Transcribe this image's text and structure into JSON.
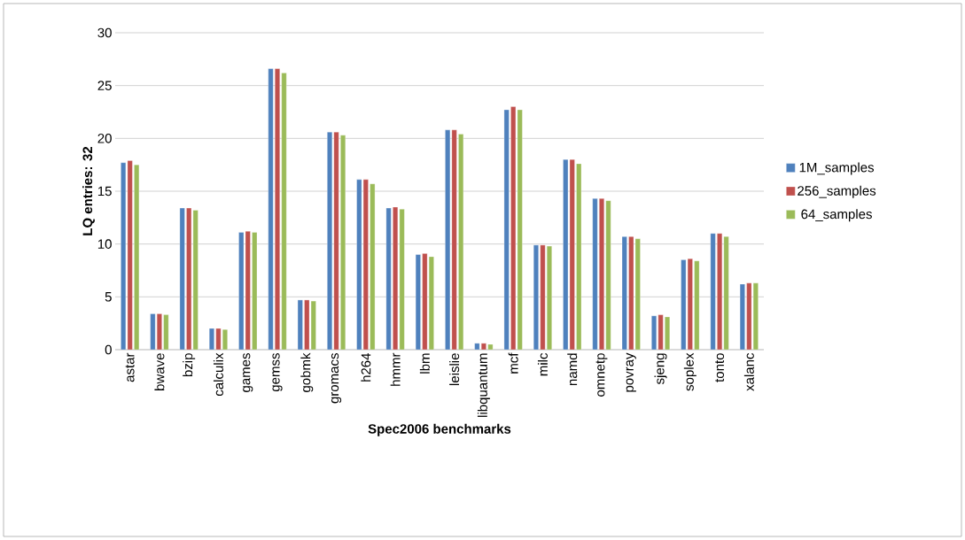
{
  "chart_data": {
    "type": "bar",
    "xlabel": "Spec2006 benchmarks",
    "ylabel": "LQ entries: 32",
    "categories": [
      "astar",
      "bwave",
      "bzip",
      "calculix",
      "games",
      "gemss",
      "gobmk",
      "gromacs",
      "h264",
      "hmmr",
      "lbm",
      "leislie",
      "libquantum",
      "mcf",
      "milc",
      "namd",
      "omnetp",
      "povray",
      "sjeng",
      "soplex",
      "tonto",
      "xalanc"
    ],
    "series": [
      {
        "name": "1M_samples",
        "color": "#4f81bd",
        "values": [
          17.7,
          3.4,
          13.4,
          2.0,
          11.1,
          26.6,
          4.7,
          20.6,
          16.1,
          13.4,
          9.0,
          20.8,
          0.6,
          22.7,
          9.9,
          18.0,
          14.3,
          10.7,
          3.2,
          8.5,
          11.0,
          6.2
        ]
      },
      {
        "name": "256_samples",
        "color": "#c0504d",
        "values": [
          17.9,
          3.4,
          13.4,
          2.0,
          11.2,
          26.6,
          4.7,
          20.6,
          16.1,
          13.5,
          9.1,
          20.8,
          0.6,
          23.0,
          9.9,
          18.0,
          14.3,
          10.7,
          3.3,
          8.6,
          11.0,
          6.3
        ]
      },
      {
        "name": "64_samples",
        "color": "#9bbb59",
        "values": [
          17.5,
          3.3,
          13.2,
          1.9,
          11.1,
          26.2,
          4.6,
          20.3,
          15.7,
          13.3,
          8.8,
          20.4,
          0.5,
          22.7,
          9.8,
          17.6,
          14.1,
          10.5,
          3.1,
          8.4,
          10.7,
          6.3
        ]
      }
    ],
    "ylim": [
      0,
      30
    ],
    "yticks": [
      0,
      5,
      10,
      15,
      20,
      25,
      30
    ],
    "grid": "y",
    "legend": "right"
  }
}
